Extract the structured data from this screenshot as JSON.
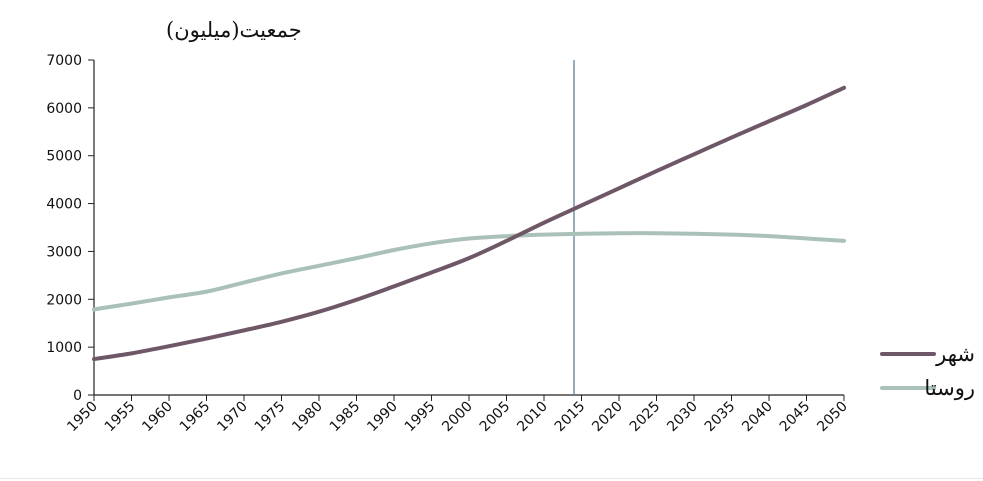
{
  "chart_data": {
    "type": "line",
    "ylabel": "جمعیت(میلیون)",
    "xlabel": "",
    "title": "",
    "ylim": [
      0,
      7000
    ],
    "yticks": [
      0,
      1000,
      2000,
      3000,
      4000,
      5000,
      6000,
      7000
    ],
    "x": [
      1950,
      1955,
      1960,
      1965,
      1970,
      1975,
      1980,
      1985,
      1990,
      1995,
      2000,
      2005,
      2010,
      2015,
      2020,
      2025,
      2030,
      2035,
      2040,
      2045,
      2050
    ],
    "xticks": [
      "1950",
      "1955",
      "1960",
      "1965",
      "1970",
      "1975",
      "1980",
      "1985",
      "1990",
      "1995",
      "2000",
      "2005",
      "2010",
      "2015",
      "2020",
      "2025",
      "2030",
      "2035",
      "2040",
      "2045",
      "2050"
    ],
    "vertical_marker_x": 2014,
    "grid": false,
    "legend_position": "right",
    "series": [
      {
        "name": "شهر",
        "color": "#6e5868",
        "values": [
          750,
          870,
          1020,
          1180,
          1350,
          1530,
          1740,
          1990,
          2270,
          2560,
          2860,
          3220,
          3600,
          3960,
          4320,
          4680,
          5030,
          5380,
          5720,
          6060,
          6420
        ]
      },
      {
        "name": "روستا",
        "color": "#a9c1b8",
        "values": [
          1790,
          1910,
          2040,
          2160,
          2350,
          2540,
          2700,
          2860,
          3030,
          3170,
          3270,
          3320,
          3350,
          3370,
          3380,
          3380,
          3370,
          3350,
          3320,
          3270,
          3220
        ]
      }
    ]
  }
}
